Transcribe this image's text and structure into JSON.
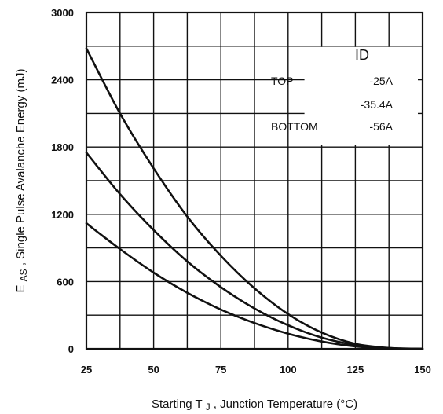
{
  "chart_data": {
    "type": "line",
    "title": "",
    "xlabel_main": "Starting T",
    "xlabel_sub": "J",
    "xlabel_rest": " , Junction Temperature (°C)",
    "ylabel_main": "E",
    "ylabel_sub": "AS",
    "ylabel_rest": " , Single Pulse Avalanche Energy (mJ)",
    "xlim": [
      25,
      150
    ],
    "ylim": [
      0,
      3000
    ],
    "x_ticks": [
      25,
      50,
      75,
      100,
      125,
      150
    ],
    "x_tick_labels": [
      "25",
      "50",
      "75",
      "100",
      "125",
      "150"
    ],
    "y_ticks": [
      0,
      600,
      1200,
      1800,
      2400,
      3000
    ],
    "y_tick_labels": [
      "0",
      "600",
      "1200",
      "1800",
      "2400",
      "3000"
    ],
    "grid": true,
    "x_gridlines": [
      25,
      37.5,
      50,
      62.5,
      75,
      87.5,
      100,
      112.5,
      125,
      137.5,
      150
    ],
    "y_gridlines": [
      0,
      300,
      600,
      900,
      1200,
      1500,
      1800,
      2100,
      2400,
      2700,
      3000
    ],
    "legend": {
      "placement": "top-right",
      "title": "ID",
      "rows": [
        {
          "position": "TOP",
          "value": "-25A"
        },
        {
          "position": "",
          "value": "-35.4A"
        },
        {
          "position": "BOTTOM",
          "value": "-56A"
        }
      ]
    },
    "series": [
      {
        "x": [
          25,
          37.5,
          50,
          62.5,
          75,
          87.5,
          100,
          112.5,
          125,
          137.5,
          150
        ],
        "y": [
          2680,
          2100,
          1610,
          1180,
          830,
          540,
          310,
          145,
          45,
          8,
          0
        ]
      },
      {
        "x": [
          25,
          37.5,
          50,
          62.5,
          75,
          87.5,
          100,
          112.5,
          125,
          137.5,
          150
        ],
        "y": [
          1750,
          1380,
          1060,
          780,
          550,
          360,
          210,
          100,
          35,
          6,
          0
        ]
      },
      {
        "x": [
          25,
          37.5,
          50,
          62.5,
          75,
          87.5,
          100,
          112.5,
          125,
          137.5,
          150
        ],
        "y": [
          1120,
          890,
          680,
          500,
          350,
          230,
          135,
          65,
          22,
          4,
          0
        ]
      }
    ],
    "colors": {
      "line": "#111111",
      "grid": "#111111",
      "background": "#ffffff"
    }
  }
}
